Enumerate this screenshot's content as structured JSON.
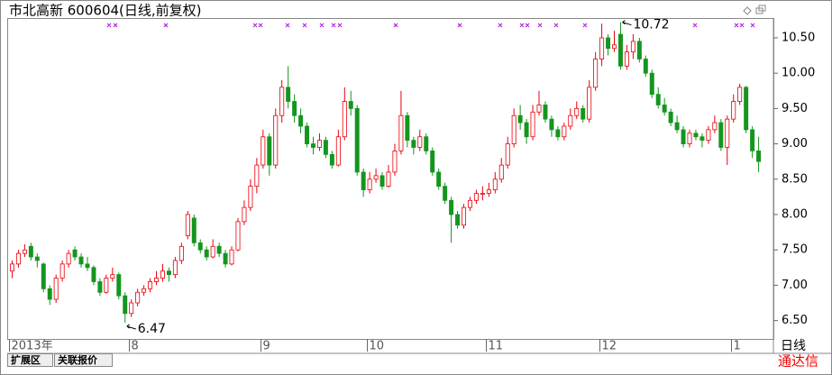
{
  "chart_data": {
    "type": "candlestick",
    "title": "市北高新 600604(日线,前复权)",
    "up_color": "#e8000b",
    "down_color": "#14961e",
    "ylim": [
      6.24,
      10.78
    ],
    "yticks": [
      {
        "value": 6.5,
        "label": "6.50"
      },
      {
        "value": 7.0,
        "label": "7.00"
      },
      {
        "value": 7.5,
        "label": "7.50"
      },
      {
        "value": 8.0,
        "label": "8.00"
      },
      {
        "value": 8.5,
        "label": "8.50"
      },
      {
        "value": 9.0,
        "label": "9.00"
      },
      {
        "value": 9.5,
        "label": "9.50"
      },
      {
        "value": 10.0,
        "label": "10.00"
      },
      {
        "value": 10.5,
        "label": "10.50"
      }
    ],
    "categories": [
      "2013年",
      null,
      null,
      null,
      null,
      null,
      null,
      null,
      null,
      null,
      null,
      null,
      null,
      null,
      null,
      null,
      null,
      null,
      null,
      "8",
      null,
      null,
      null,
      null,
      null,
      null,
      null,
      null,
      null,
      null,
      null,
      null,
      null,
      null,
      null,
      null,
      null,
      null,
      null,
      null,
      "9",
      null,
      null,
      null,
      null,
      null,
      null,
      null,
      null,
      null,
      null,
      null,
      null,
      null,
      null,
      null,
      null,
      "10",
      null,
      null,
      null,
      null,
      null,
      null,
      null,
      null,
      null,
      null,
      null,
      null,
      null,
      null,
      null,
      null,
      null,
      null,
      "11",
      null,
      null,
      null,
      null,
      null,
      null,
      null,
      null,
      null,
      null,
      null,
      null,
      null,
      null,
      null,
      null,
      null,
      "12",
      null,
      null,
      null,
      null,
      null,
      null,
      null,
      null,
      null,
      null,
      null,
      null,
      null,
      null,
      null,
      null,
      null,
      null,
      null,
      null,
      "1",
      null,
      null,
      null,
      null,
      null
    ],
    "ohlc": [
      [
        7.2,
        7.35,
        7.1,
        7.3
      ],
      [
        7.3,
        7.5,
        7.25,
        7.45
      ],
      [
        7.45,
        7.58,
        7.4,
        7.5
      ],
      [
        7.55,
        7.6,
        7.35,
        7.4
      ],
      [
        7.4,
        7.45,
        7.25,
        7.35
      ],
      [
        7.3,
        7.32,
        6.9,
        6.95
      ],
      [
        6.95,
        7.0,
        6.72,
        6.8
      ],
      [
        6.8,
        7.15,
        6.75,
        7.1
      ],
      [
        7.1,
        7.35,
        7.05,
        7.3
      ],
      [
        7.3,
        7.5,
        7.25,
        7.45
      ],
      [
        7.5,
        7.55,
        7.35,
        7.4
      ],
      [
        7.4,
        7.45,
        7.25,
        7.3
      ],
      [
        7.3,
        7.4,
        7.2,
        7.25
      ],
      [
        7.25,
        7.28,
        7.0,
        7.05
      ],
      [
        7.05,
        7.1,
        6.85,
        6.9
      ],
      [
        6.9,
        7.15,
        6.88,
        7.1
      ],
      [
        7.1,
        7.25,
        7.05,
        7.15
      ],
      [
        7.15,
        7.18,
        6.8,
        6.85
      ],
      [
        6.85,
        6.9,
        6.47,
        6.6
      ],
      [
        6.6,
        6.8,
        6.55,
        6.75
      ],
      [
        6.75,
        6.95,
        6.7,
        6.9
      ],
      [
        6.9,
        7.0,
        6.85,
        6.95
      ],
      [
        6.95,
        7.1,
        6.9,
        7.05
      ],
      [
        7.05,
        7.2,
        7.0,
        7.1
      ],
      [
        7.1,
        7.3,
        7.05,
        7.2
      ],
      [
        7.2,
        7.25,
        7.05,
        7.15
      ],
      [
        7.15,
        7.4,
        7.1,
        7.35
      ],
      [
        7.35,
        7.6,
        7.3,
        7.55
      ],
      [
        7.7,
        8.05,
        7.65,
        8.0
      ],
      [
        7.95,
        8.0,
        7.55,
        7.6
      ],
      [
        7.6,
        7.65,
        7.45,
        7.5
      ],
      [
        7.5,
        7.55,
        7.35,
        7.4
      ],
      [
        7.4,
        7.65,
        7.38,
        7.55
      ],
      [
        7.55,
        7.6,
        7.4,
        7.45
      ],
      [
        7.45,
        7.5,
        7.25,
        7.3
      ],
      [
        7.3,
        7.55,
        7.28,
        7.5
      ],
      [
        7.5,
        7.95,
        7.48,
        7.9
      ],
      [
        7.9,
        8.2,
        7.85,
        8.1
      ],
      [
        8.1,
        8.5,
        8.05,
        8.4
      ],
      [
        8.4,
        8.8,
        8.3,
        8.7
      ],
      [
        8.7,
        9.2,
        8.65,
        9.1
      ],
      [
        9.1,
        9.15,
        8.55,
        8.7
      ],
      [
        8.7,
        9.5,
        8.65,
        9.4
      ],
      [
        9.4,
        9.9,
        9.3,
        9.8
      ],
      [
        9.8,
        10.1,
        9.5,
        9.6
      ],
      [
        9.6,
        9.7,
        9.3,
        9.4
      ],
      [
        9.4,
        9.5,
        9.15,
        9.25
      ],
      [
        9.25,
        9.3,
        8.95,
        9.0
      ],
      [
        9.0,
        9.1,
        8.85,
        8.95
      ],
      [
        8.95,
        9.15,
        8.9,
        9.05
      ],
      [
        9.05,
        9.1,
        8.8,
        8.85
      ],
      [
        8.85,
        8.9,
        8.65,
        8.7
      ],
      [
        8.7,
        9.2,
        8.68,
        9.1
      ],
      [
        9.1,
        9.8,
        9.05,
        9.6
      ],
      [
        9.6,
        9.75,
        9.4,
        9.5
      ],
      [
        9.5,
        9.55,
        8.55,
        8.6
      ],
      [
        8.6,
        8.65,
        8.25,
        8.35
      ],
      [
        8.35,
        8.6,
        8.3,
        8.5
      ],
      [
        8.5,
        8.65,
        8.45,
        8.55
      ],
      [
        8.55,
        8.6,
        8.35,
        8.4
      ],
      [
        8.4,
        8.7,
        8.38,
        8.6
      ],
      [
        8.6,
        9.0,
        8.55,
        8.9
      ],
      [
        8.9,
        9.75,
        8.85,
        9.4
      ],
      [
        9.4,
        9.45,
        8.95,
        9.05
      ],
      [
        9.05,
        9.1,
        8.85,
        8.95
      ],
      [
        8.95,
        9.2,
        8.9,
        9.1
      ],
      [
        9.1,
        9.15,
        8.85,
        8.9
      ],
      [
        8.9,
        8.95,
        8.55,
        8.6
      ],
      [
        8.6,
        8.65,
        8.35,
        8.4
      ],
      [
        8.4,
        8.45,
        8.15,
        8.2
      ],
      [
        8.2,
        8.25,
        7.6,
        8.0
      ],
      [
        8.0,
        8.05,
        7.8,
        7.85
      ],
      [
        7.85,
        8.15,
        7.8,
        8.1
      ],
      [
        8.1,
        8.25,
        8.05,
        8.2
      ],
      [
        8.2,
        8.35,
        8.15,
        8.3
      ],
      [
        8.3,
        8.4,
        8.2,
        8.3
      ],
      [
        8.3,
        8.45,
        8.25,
        8.35
      ],
      [
        8.35,
        8.6,
        8.3,
        8.5
      ],
      [
        8.5,
        8.8,
        8.45,
        8.7
      ],
      [
        8.7,
        9.1,
        8.65,
        9.0
      ],
      [
        9.0,
        9.5,
        8.95,
        9.4
      ],
      [
        9.4,
        9.55,
        9.2,
        9.3
      ],
      [
        9.3,
        9.35,
        9.0,
        9.1
      ],
      [
        9.1,
        9.55,
        9.05,
        9.45
      ],
      [
        9.45,
        9.75,
        9.4,
        9.55
      ],
      [
        9.55,
        9.6,
        9.3,
        9.35
      ],
      [
        9.35,
        9.4,
        9.1,
        9.2
      ],
      [
        9.2,
        9.25,
        9.05,
        9.1
      ],
      [
        9.1,
        9.3,
        9.05,
        9.25
      ],
      [
        9.25,
        9.5,
        9.2,
        9.4
      ],
      [
        9.4,
        9.6,
        9.35,
        9.5
      ],
      [
        9.5,
        9.55,
        9.3,
        9.35
      ],
      [
        9.35,
        9.9,
        9.3,
        9.8
      ],
      [
        9.8,
        10.3,
        9.75,
        10.2
      ],
      [
        10.2,
        10.7,
        10.1,
        10.5
      ],
      [
        10.5,
        10.55,
        10.25,
        10.35
      ],
      [
        10.35,
        10.6,
        10.3,
        10.4
      ],
      [
        10.55,
        10.72,
        10.05,
        10.1
      ],
      [
        10.1,
        10.4,
        10.05,
        10.3
      ],
      [
        10.3,
        10.55,
        10.2,
        10.45
      ],
      [
        10.45,
        10.5,
        10.15,
        10.2
      ],
      [
        10.2,
        10.25,
        9.95,
        10.0
      ],
      [
        10.0,
        10.05,
        9.65,
        9.7
      ],
      [
        9.7,
        9.8,
        9.5,
        9.55
      ],
      [
        9.55,
        9.65,
        9.4,
        9.45
      ],
      [
        9.45,
        9.5,
        9.25,
        9.3
      ],
      [
        9.3,
        9.4,
        9.15,
        9.2
      ],
      [
        9.2,
        9.25,
        8.95,
        9.0
      ],
      [
        9.0,
        9.2,
        8.95,
        9.15
      ],
      [
        9.15,
        9.2,
        9.05,
        9.1
      ],
      [
        9.1,
        9.15,
        8.95,
        9.05
      ],
      [
        9.05,
        9.25,
        9.0,
        9.2
      ],
      [
        9.2,
        9.4,
        9.15,
        9.3
      ],
      [
        9.3,
        9.35,
        8.9,
        8.95
      ],
      [
        8.95,
        9.4,
        8.7,
        9.35
      ],
      [
        9.35,
        9.7,
        9.3,
        9.6
      ],
      [
        9.6,
        9.85,
        9.55,
        9.8
      ],
      [
        9.8,
        9.82,
        9.15,
        9.2
      ],
      [
        9.2,
        9.25,
        8.8,
        8.9
      ],
      [
        8.9,
        9.1,
        8.6,
        8.75
      ]
    ],
    "annotations": [
      {
        "value": 10.72,
        "label": "10.72"
      },
      {
        "value": 6.47,
        "label": "6.47"
      }
    ],
    "period_label": "日线"
  },
  "footer": {
    "tabs": [
      "扩展区",
      "关联报价"
    ],
    "brand": "通达信"
  }
}
